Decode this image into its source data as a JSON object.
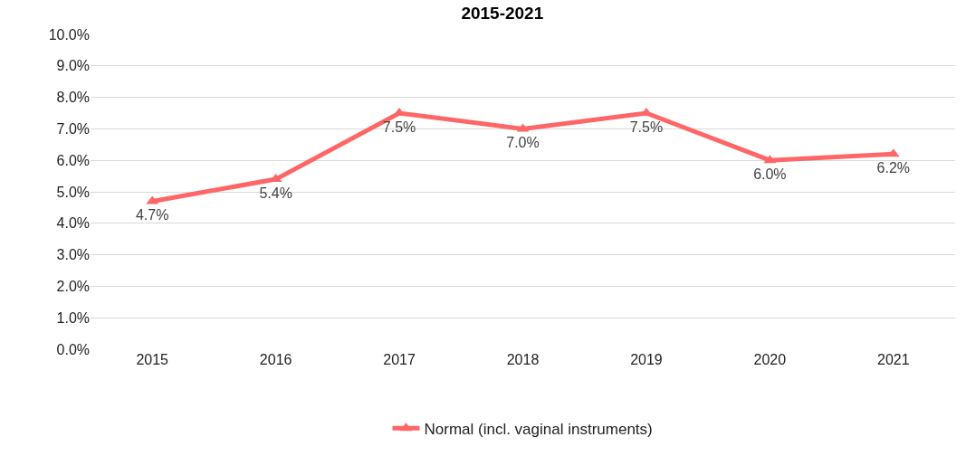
{
  "chart_data": {
    "type": "line",
    "title": "2015-2021",
    "categories": [
      "2015",
      "2016",
      "2017",
      "2018",
      "2019",
      "2020",
      "2021"
    ],
    "series": [
      {
        "name": "Normal (incl. vaginal instruments)",
        "color": "#ff6666",
        "values": [
          4.7,
          5.4,
          7.5,
          7.0,
          7.5,
          6.0,
          6.2
        ],
        "value_labels": [
          "4.7%",
          "5.4%",
          "7.5%",
          "7.0%",
          "7.5%",
          "6.0%",
          "6.2%"
        ]
      }
    ],
    "ylim": [
      0,
      10
    ],
    "yticks": [
      {
        "value": 0,
        "label": "0.0%"
      },
      {
        "value": 1,
        "label": "1.0%"
      },
      {
        "value": 2,
        "label": "2.0%"
      },
      {
        "value": 3,
        "label": "3.0%"
      },
      {
        "value": 4,
        "label": "4.0%"
      },
      {
        "value": 5,
        "label": "5.0%"
      },
      {
        "value": 6,
        "label": "6.0%"
      },
      {
        "value": 7,
        "label": "7.0%"
      },
      {
        "value": 8,
        "label": "8.0%"
      },
      {
        "value": 9,
        "label": "9.0%"
      },
      {
        "value": 10,
        "label": "10.0%"
      }
    ],
    "grid": "y",
    "legend": "bottom",
    "marker": "triangle",
    "line_style": "solid"
  }
}
